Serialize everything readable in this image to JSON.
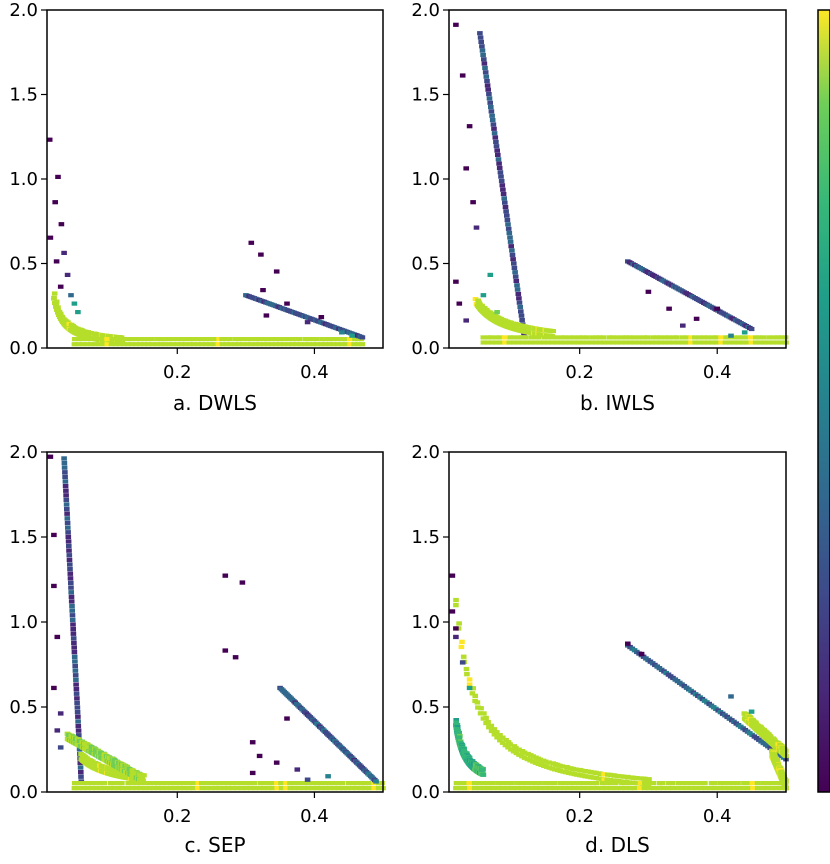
{
  "chart_data": {
    "type": "heatmap",
    "colormap": "viridis",
    "colors": {
      "low": "#440154",
      "mid": "#21918c",
      "high": "#fde725"
    },
    "colorbar": {
      "tick_labels": []
    },
    "panels": [
      {
        "name": "a",
        "xlabel": "a. DWLS",
        "xlim": [
          0.01,
          0.5
        ],
        "ylim": [
          0,
          2.0
        ],
        "xticks": [
          0.2,
          0.4
        ],
        "xtick_labels": [
          "0.2",
          "0.4"
        ],
        "yticks": [
          0,
          0.5,
          1.0,
          1.5,
          2.0
        ],
        "ytick_labels": [
          "0.0",
          "0.5",
          "1.0",
          "1.5",
          "2.0"
        ],
        "bands": [
          {
            "shape": "curve",
            "k": 0.0045,
            "x0": 0.02,
            "x1": 0.12,
            "level": 0.95
          },
          {
            "shape": "line",
            "x0": 0.05,
            "x1": 0.47,
            "y0": 0.01,
            "y1": 0.01,
            "level": 0.95
          },
          {
            "shape": "line",
            "x0": 0.3,
            "x1": 0.47,
            "y0": 0.3,
            "y1": 0.05,
            "level": 0.15
          }
        ],
        "scatter": [
          {
            "x": 0.014,
            "y": 1.22,
            "level": 0.05
          },
          {
            "x": 0.026,
            "y": 1.0,
            "level": 0.05
          },
          {
            "x": 0.022,
            "y": 0.85,
            "level": 0.05
          },
          {
            "x": 0.031,
            "y": 0.72,
            "level": 0.05
          },
          {
            "x": 0.015,
            "y": 0.64,
            "level": 0.05
          },
          {
            "x": 0.035,
            "y": 0.55,
            "level": 0.1
          },
          {
            "x": 0.024,
            "y": 0.5,
            "level": 0.05
          },
          {
            "x": 0.04,
            "y": 0.42,
            "level": 0.1
          },
          {
            "x": 0.03,
            "y": 0.35,
            "level": 0.05
          },
          {
            "x": 0.045,
            "y": 0.3,
            "level": 0.3
          },
          {
            "x": 0.05,
            "y": 0.25,
            "level": 0.5
          },
          {
            "x": 0.055,
            "y": 0.2,
            "level": 0.6
          },
          {
            "x": 0.308,
            "y": 0.61,
            "level": 0.05
          },
          {
            "x": 0.322,
            "y": 0.54,
            "level": 0.05
          },
          {
            "x": 0.345,
            "y": 0.44,
            "level": 0.05
          },
          {
            "x": 0.325,
            "y": 0.33,
            "level": 0.05
          },
          {
            "x": 0.36,
            "y": 0.25,
            "level": 0.05
          },
          {
            "x": 0.33,
            "y": 0.18,
            "level": 0.05
          },
          {
            "x": 0.39,
            "y": 0.14,
            "level": 0.1
          },
          {
            "x": 0.41,
            "y": 0.17,
            "level": 0.05
          },
          {
            "x": 0.44,
            "y": 0.08,
            "level": 0.4
          },
          {
            "x": 0.455,
            "y": 0.06,
            "level": 0.6
          }
        ]
      },
      {
        "name": "b",
        "xlabel": "b. IWLS",
        "xlim": [
          0.01,
          0.5
        ],
        "ylim": [
          0,
          2.0
        ],
        "xticks": [
          0.2,
          0.4
        ],
        "xtick_labels": [
          "0.2",
          "0.4"
        ],
        "yticks": [
          0,
          0.5,
          1.0,
          1.5,
          2.0
        ],
        "ytick_labels": [
          "0.0",
          "0.5",
          "1.0",
          "1.5",
          "2.0"
        ],
        "bands": [
          {
            "shape": "line",
            "x0": 0.055,
            "x1": 0.12,
            "y0": 1.85,
            "y1": 0.05,
            "level": 0.1
          },
          {
            "shape": "curve",
            "k": 0.012,
            "x0": 0.05,
            "x1": 0.16,
            "level": 0.95
          },
          {
            "shape": "line",
            "x0": 0.06,
            "x1": 0.5,
            "y0": 0.02,
            "y1": 0.02,
            "level": 0.95
          },
          {
            "shape": "line",
            "x0": 0.27,
            "x1": 0.45,
            "y0": 0.5,
            "y1": 0.1,
            "level": 0.1
          }
        ],
        "scatter": [
          {
            "x": 0.02,
            "y": 1.9,
            "level": 0.05
          },
          {
            "x": 0.03,
            "y": 1.6,
            "level": 0.05
          },
          {
            "x": 0.04,
            "y": 1.3,
            "level": 0.05
          },
          {
            "x": 0.035,
            "y": 1.05,
            "level": 0.05
          },
          {
            "x": 0.045,
            "y": 0.85,
            "level": 0.05
          },
          {
            "x": 0.05,
            "y": 0.7,
            "level": 0.1
          },
          {
            "x": 0.02,
            "y": 0.38,
            "level": 0.05
          },
          {
            "x": 0.025,
            "y": 0.25,
            "level": 0.05
          },
          {
            "x": 0.035,
            "y": 0.15,
            "level": 0.1
          },
          {
            "x": 0.06,
            "y": 0.3,
            "level": 0.5
          },
          {
            "x": 0.07,
            "y": 0.42,
            "level": 0.6
          },
          {
            "x": 0.08,
            "y": 0.2,
            "level": 0.8
          },
          {
            "x": 0.3,
            "y": 0.32,
            "level": 0.05
          },
          {
            "x": 0.33,
            "y": 0.22,
            "level": 0.05
          },
          {
            "x": 0.35,
            "y": 0.12,
            "level": 0.1
          },
          {
            "x": 0.37,
            "y": 0.16,
            "level": 0.05
          },
          {
            "x": 0.4,
            "y": 0.22,
            "level": 0.05
          },
          {
            "x": 0.42,
            "y": 0.06,
            "level": 0.4
          },
          {
            "x": 0.44,
            "y": 0.08,
            "level": 0.6
          }
        ]
      },
      {
        "name": "c",
        "xlabel": "c. SEP",
        "xlim": [
          0.01,
          0.5
        ],
        "ylim": [
          0,
          2.0
        ],
        "xticks": [
          0.2,
          0.4
        ],
        "xtick_labels": [
          "0.2",
          "0.4"
        ],
        "yticks": [
          0,
          0.5,
          1.0,
          1.5,
          2.0
        ],
        "ytick_labels": [
          "0.0",
          "0.5",
          "1.0",
          "1.5",
          "2.0"
        ],
        "bands": [
          {
            "shape": "line",
            "x0": 0.035,
            "x1": 0.06,
            "y0": 1.95,
            "y1": 0.05,
            "level": 0.1
          },
          {
            "shape": "curve",
            "k": 0.011,
            "x0": 0.06,
            "x1": 0.15,
            "level": 0.95
          },
          {
            "shape": "line",
            "x0": 0.05,
            "x1": 0.5,
            "y0": 0.01,
            "y1": 0.01,
            "level": 0.95
          },
          {
            "shape": "line",
            "x0": 0.35,
            "x1": 0.49,
            "y0": 0.6,
            "y1": 0.05,
            "level": 0.15
          },
          {
            "shape": "line",
            "x0": 0.04,
            "x1": 0.15,
            "y0": 0.3,
            "y1": 0.05,
            "level": 0.9
          }
        ],
        "scatter": [
          {
            "x": 0.015,
            "y": 1.96,
            "level": 0.05
          },
          {
            "x": 0.02,
            "y": 1.5,
            "level": 0.05
          },
          {
            "x": 0.02,
            "y": 1.2,
            "level": 0.05
          },
          {
            "x": 0.025,
            "y": 0.9,
            "level": 0.05
          },
          {
            "x": 0.02,
            "y": 0.6,
            "level": 0.05
          },
          {
            "x": 0.03,
            "y": 0.45,
            "level": 0.1
          },
          {
            "x": 0.025,
            "y": 0.35,
            "level": 0.1
          },
          {
            "x": 0.03,
            "y": 0.25,
            "level": 0.2
          },
          {
            "x": 0.27,
            "y": 1.26,
            "level": 0.05
          },
          {
            "x": 0.295,
            "y": 1.22,
            "level": 0.05
          },
          {
            "x": 0.27,
            "y": 0.82,
            "level": 0.05
          },
          {
            "x": 0.285,
            "y": 0.78,
            "level": 0.05
          },
          {
            "x": 0.31,
            "y": 0.28,
            "level": 0.05
          },
          {
            "x": 0.32,
            "y": 0.2,
            "level": 0.05
          },
          {
            "x": 0.345,
            "y": 0.16,
            "level": 0.05
          },
          {
            "x": 0.31,
            "y": 0.1,
            "level": 0.05
          },
          {
            "x": 0.36,
            "y": 0.42,
            "level": 0.05
          },
          {
            "x": 0.375,
            "y": 0.12,
            "level": 0.1
          },
          {
            "x": 0.39,
            "y": 0.06,
            "level": 0.2
          },
          {
            "x": 0.42,
            "y": 0.08,
            "level": 0.4
          }
        ]
      },
      {
        "name": "d",
        "xlabel": "d. DLS",
        "xlim": [
          0.01,
          0.5
        ],
        "ylim": [
          0,
          2.0
        ],
        "xticks": [
          0.2,
          0.4
        ],
        "xtick_labels": [
          "0.2",
          "0.4"
        ],
        "yticks": [
          0,
          0.5,
          1.0,
          1.5,
          2.0
        ],
        "ytick_labels": [
          "0.0",
          "0.5",
          "1.0",
          "1.5",
          "2.0"
        ],
        "bands": [
          {
            "shape": "hyper",
            "k": 0.035,
            "x0": 0.02,
            "x1": 0.3,
            "level": 0.95
          },
          {
            "shape": "line",
            "x0": 0.02,
            "x1": 0.5,
            "y0": 0.01,
            "y1": 0.01,
            "level": 0.95
          },
          {
            "shape": "line",
            "x0": 0.27,
            "x1": 0.5,
            "y0": 0.85,
            "y1": 0.18,
            "level": 0.2
          },
          {
            "shape": "line",
            "x0": 0.44,
            "x1": 0.5,
            "y0": 0.42,
            "y1": 0.2,
            "level": 0.95
          },
          {
            "shape": "line",
            "x0": 0.48,
            "x1": 0.5,
            "y0": 0.2,
            "y1": 0.01,
            "level": 0.95
          },
          {
            "shape": "curve",
            "k": 0.006,
            "x0": 0.02,
            "x1": 0.06,
            "level": 0.5
          }
        ],
        "scatter": [
          {
            "x": 0.015,
            "y": 1.26,
            "level": 0.05
          },
          {
            "x": 0.015,
            "y": 1.05,
            "level": 0.05
          },
          {
            "x": 0.02,
            "y": 0.95,
            "level": 0.05
          },
          {
            "x": 0.02,
            "y": 0.9,
            "level": 0.1
          },
          {
            "x": 0.03,
            "y": 0.75,
            "level": 0.2
          },
          {
            "x": 0.04,
            "y": 0.6,
            "level": 0.5
          },
          {
            "x": 0.27,
            "y": 0.86,
            "level": 0.05
          },
          {
            "x": 0.29,
            "y": 0.8,
            "level": 0.05
          },
          {
            "x": 0.42,
            "y": 0.55,
            "level": 0.3
          },
          {
            "x": 0.45,
            "y": 0.46,
            "level": 0.6
          }
        ]
      }
    ]
  }
}
